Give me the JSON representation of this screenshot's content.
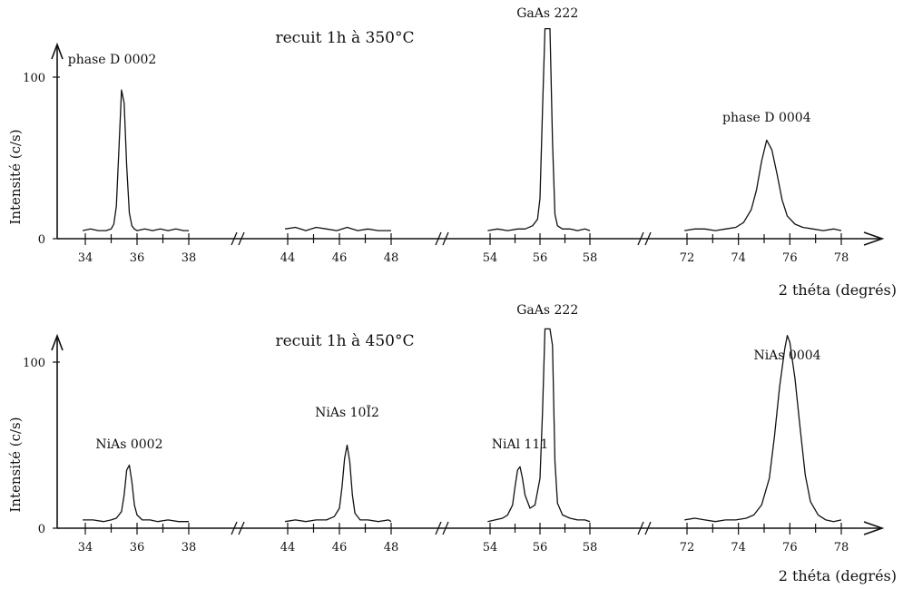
{
  "chart_data": [
    {
      "type": "line",
      "title": "recuit 1h à 350°C",
      "xlabel": "2 théta (degrés)",
      "ylabel": "Intensité (c/s)",
      "y_ticks": [
        "0",
        "100"
      ],
      "ylim": [
        0,
        100
      ],
      "y_clip": 130,
      "segments": [
        {
          "tick_labels": [
            "34",
            "36",
            "38"
          ],
          "x": [
            33.9,
            34.2,
            34.5,
            34.8,
            35.0,
            35.1,
            35.2,
            35.3,
            35.4,
            35.5,
            35.6,
            35.7,
            35.8,
            35.9,
            36.0,
            36.3,
            36.6,
            36.9,
            37.2,
            37.5,
            37.8,
            38.0
          ],
          "y": [
            5,
            6,
            5,
            5,
            6,
            9,
            20,
            55,
            92,
            84,
            45,
            16,
            8,
            6,
            5,
            6,
            5,
            6,
            5,
            6,
            5,
            5
          ]
        },
        {
          "tick_labels": [
            "44",
            "46",
            "48"
          ],
          "x": [
            43.9,
            44.3,
            44.7,
            45.1,
            45.5,
            45.9,
            46.3,
            46.7,
            47.1,
            47.5,
            47.9,
            48.0
          ],
          "y": [
            6,
            7,
            5,
            7,
            6,
            5,
            7,
            5,
            6,
            5,
            5,
            5
          ]
        },
        {
          "tick_labels": [
            "54",
            "56",
            "58"
          ],
          "x": [
            53.9,
            54.3,
            54.7,
            55.1,
            55.4,
            55.7,
            55.9,
            56.0,
            56.1,
            56.2,
            56.3,
            56.4,
            56.5,
            56.6,
            56.7,
            56.9,
            57.2,
            57.5,
            57.8,
            58.0
          ],
          "y": [
            5,
            6,
            5,
            6,
            6,
            8,
            12,
            25,
            80,
            160,
            180,
            150,
            60,
            15,
            8,
            6,
            6,
            5,
            6,
            5
          ]
        },
        {
          "tick_labels": [
            "72",
            "74",
            "76",
            "78"
          ],
          "x": [
            71.9,
            72.3,
            72.7,
            73.1,
            73.5,
            73.9,
            74.2,
            74.5,
            74.7,
            74.9,
            75.1,
            75.3,
            75.5,
            75.7,
            75.9,
            76.2,
            76.5,
            76.9,
            77.3,
            77.7,
            78.0
          ],
          "y": [
            5,
            6,
            6,
            5,
            6,
            7,
            10,
            18,
            30,
            48,
            61,
            55,
            40,
            24,
            14,
            9,
            7,
            6,
            5,
            6,
            5
          ]
        }
      ],
      "annotations": [
        {
          "text": "phase D  0002",
          "x": 35.5
        },
        {
          "text": "GaAs  222",
          "x": 56.3
        },
        {
          "text": "phase D  0004",
          "x": 75.1
        }
      ]
    },
    {
      "type": "line",
      "title": "recuit 1h à 450°C",
      "xlabel": "2 théta (degrés)",
      "ylabel": "Intensité (c/s)",
      "y_ticks": [
        "0",
        "100"
      ],
      "ylim": [
        0,
        100
      ],
      "y_clip": 120,
      "segments": [
        {
          "tick_labels": [
            "34",
            "36",
            "38"
          ],
          "x": [
            33.9,
            34.3,
            34.7,
            35.0,
            35.2,
            35.4,
            35.5,
            35.6,
            35.7,
            35.8,
            35.9,
            36.0,
            36.2,
            36.5,
            36.8,
            37.2,
            37.6,
            38.0
          ],
          "y": [
            5,
            5,
            4,
            5,
            6,
            10,
            20,
            35,
            38,
            28,
            14,
            8,
            5,
            5,
            4,
            5,
            4,
            4
          ]
        },
        {
          "tick_labels": [
            "44",
            "46",
            "48"
          ],
          "x": [
            43.9,
            44.3,
            44.7,
            45.1,
            45.5,
            45.8,
            46.0,
            46.1,
            46.2,
            46.3,
            46.4,
            46.5,
            46.6,
            46.8,
            47.1,
            47.5,
            47.9,
            48.0
          ],
          "y": [
            4,
            5,
            4,
            5,
            5,
            7,
            12,
            25,
            42,
            50,
            40,
            20,
            9,
            5,
            5,
            4,
            5,
            4
          ]
        },
        {
          "tick_labels": [
            "54",
            "56",
            "58"
          ],
          "x": [
            53.9,
            54.2,
            54.5,
            54.7,
            54.9,
            55.0,
            55.1,
            55.2,
            55.3,
            55.4,
            55.6,
            55.8,
            56.0,
            56.1,
            56.2,
            56.3,
            56.4,
            56.5,
            56.6,
            56.7,
            56.9,
            57.2,
            57.5,
            57.8,
            58.0
          ],
          "y": [
            4,
            5,
            6,
            8,
            14,
            25,
            35,
            37,
            30,
            20,
            12,
            14,
            30,
            70,
            130,
            175,
            170,
            110,
            40,
            15,
            8,
            6,
            5,
            5,
            4
          ]
        },
        {
          "tick_labels": [
            "72",
            "74",
            "76",
            "78"
          ],
          "x": [
            71.9,
            72.3,
            72.7,
            73.1,
            73.5,
            73.9,
            74.3,
            74.6,
            74.9,
            75.2,
            75.4,
            75.6,
            75.8,
            75.9,
            76.0,
            76.2,
            76.4,
            76.6,
            76.8,
            77.1,
            77.4,
            77.7,
            78.0
          ],
          "y": [
            5,
            6,
            5,
            4,
            5,
            5,
            6,
            8,
            14,
            30,
            55,
            85,
            108,
            116,
            112,
            90,
            60,
            32,
            16,
            8,
            5,
            4,
            5
          ]
        }
      ],
      "annotations": [
        {
          "text": "NiAs  0002",
          "x": 35.7
        },
        {
          "text": "NiAs  10Ī2",
          "x": 46.3
        },
        {
          "text": "NiAl  111",
          "x": 55.2
        },
        {
          "text": "GaAs  222",
          "x": 56.3
        },
        {
          "text": "NiAs  0004",
          "x": 75.9
        }
      ]
    }
  ]
}
